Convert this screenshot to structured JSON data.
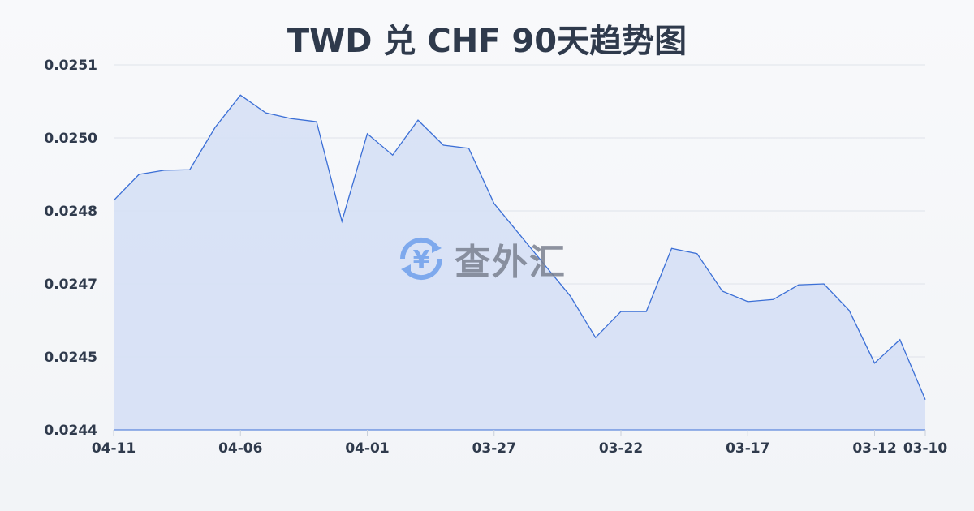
{
  "chart_data": {
    "type": "area",
    "title": "TWD 兑 CHF 90天趋势图",
    "xlabel": "",
    "ylabel": "",
    "x": [
      "04-11",
      "04-10",
      "04-09",
      "04-08",
      "04-07",
      "04-06",
      "04-05",
      "04-04",
      "04-03",
      "04-02",
      "04-01",
      "03-31",
      "03-30",
      "03-29",
      "03-28",
      "03-27",
      "03-26",
      "03-25",
      "03-24",
      "03-23",
      "03-22",
      "03-21",
      "03-20",
      "03-19",
      "03-18",
      "03-17",
      "03-16",
      "03-15",
      "03-14",
      "03-13",
      "03-12",
      "03-11",
      "03-10"
    ],
    "values": [
      0.02484,
      0.02489,
      0.024898,
      0.024899,
      0.02498,
      0.025042,
      0.025008,
      0.024997,
      0.024991,
      0.0248,
      0.024968,
      0.024927,
      0.024994,
      0.024946,
      0.02494,
      0.024834,
      0.024775,
      0.024716,
      0.024657,
      0.024577,
      0.024627,
      0.024627,
      0.024748,
      0.024738,
      0.024666,
      0.024646,
      0.02465,
      0.024678,
      0.02468,
      0.024629,
      0.024528,
      0.024573,
      0.024458
    ],
    "xtick_labels": [
      "04-11",
      "04-06",
      "04-01",
      "03-27",
      "03-22",
      "03-17",
      "03-12",
      "03-10"
    ],
    "ytick_labels": [
      "0.0244",
      "0.0245",
      "0.0247",
      "0.0248",
      "0.0250",
      "0.0251"
    ],
    "ylim": [
      0.0244,
      0.0251
    ],
    "grid": true,
    "line_color": "#3b6fd6",
    "fill_color": "#d6e0f5"
  },
  "watermark": {
    "text": "查外汇",
    "icon": "yen-exchange-icon",
    "color": "#6fa0ec"
  }
}
